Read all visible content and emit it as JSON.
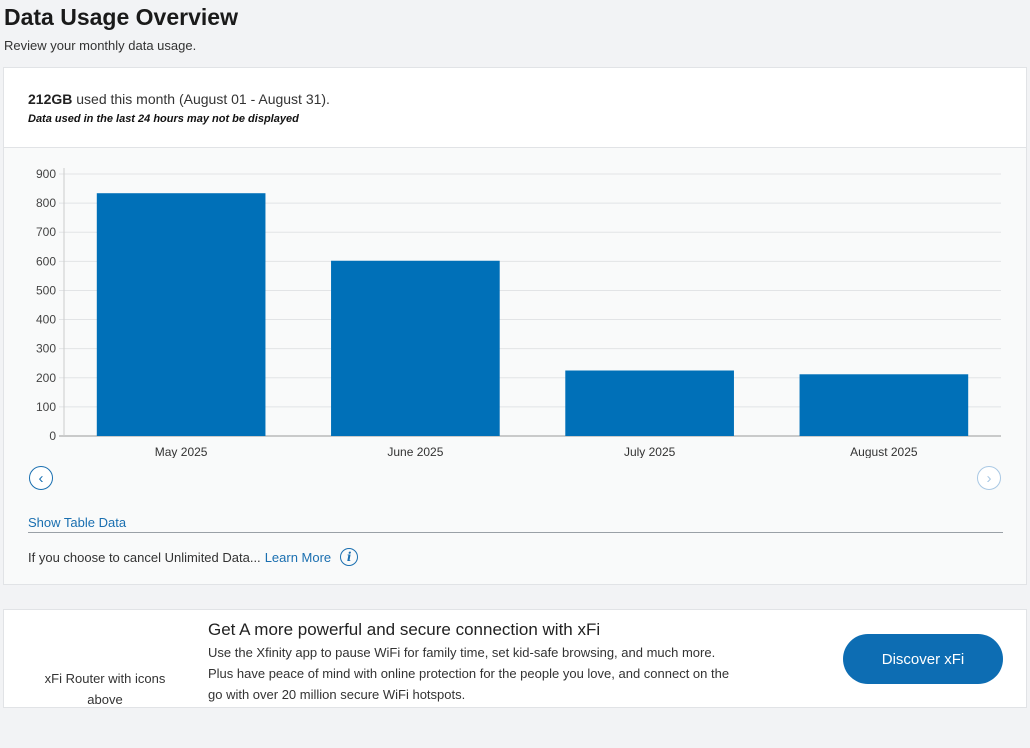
{
  "header": {
    "title": "Data Usage Overview",
    "subtitle": "Review your monthly data usage."
  },
  "usage": {
    "amount": "212GB",
    "text": " used this month (August 01 - August 31).",
    "note": "Data used in the last 24 hours may not be displayed"
  },
  "chart_data": {
    "type": "bar",
    "categories": [
      "May 2025",
      "June 2025",
      "July 2025",
      "August 2025"
    ],
    "values": [
      834,
      602,
      225,
      212
    ],
    "ylim": [
      0,
      900
    ],
    "yticks": [
      0,
      100,
      200,
      300,
      400,
      500,
      600,
      700,
      800,
      900
    ],
    "grid": true,
    "color": "#0070b8"
  },
  "nav": {
    "prev_icon": "chevron-left-icon",
    "next_icon": "chevron-right-icon"
  },
  "links": {
    "show_table": "Show Table Data",
    "cancel_text": "If you choose to cancel Unlimited Data...",
    "learn_more": "Learn More",
    "info_icon": "info-icon"
  },
  "promo": {
    "image_alt": "xFi Router with icons above",
    "title": "Get A more powerful and secure connection with xFi",
    "body": "Use the Xfinity app to pause WiFi for family time, set kid-safe browsing, and much more. Plus have peace of mind with online protection for the people you love, and connect on the go with over 20 million secure WiFi hotspots.",
    "button": "Discover xFi"
  },
  "colors": {
    "accent": "#0d6db3",
    "bar": "#0070b8",
    "link": "#1a6fb0"
  }
}
